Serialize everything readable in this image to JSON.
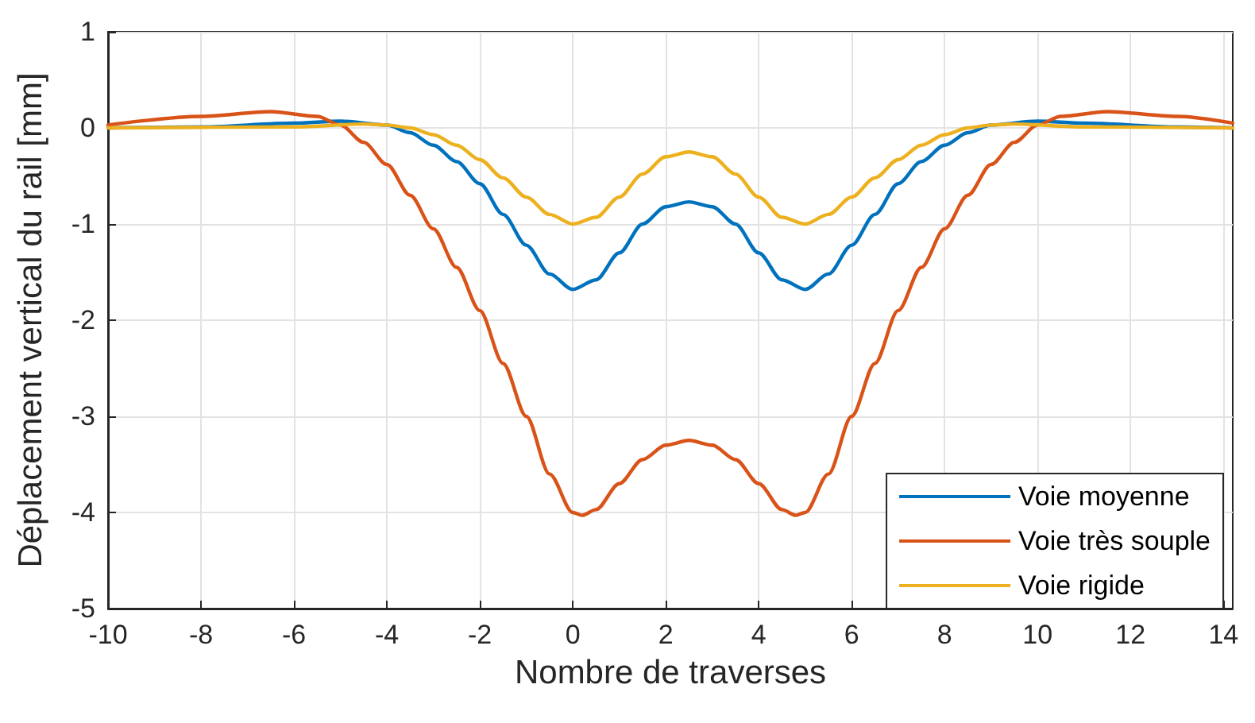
{
  "chart_data": {
    "type": "line",
    "xlabel": "Nombre de traverses",
    "ylabel": "Déplacement vertical du rail [mm]",
    "xlim": [
      -10,
      14.2
    ],
    "xticks": [
      -10,
      -8,
      -6,
      -4,
      -2,
      0,
      2,
      4,
      6,
      8,
      10,
      12,
      14
    ],
    "ylim": [
      -5,
      1
    ],
    "yticks": [
      -5,
      -4,
      -3,
      -2,
      -1,
      0,
      1
    ],
    "grid": true,
    "legend": "bottom right",
    "marker": "none",
    "line_style": "solid",
    "series": [
      {
        "name": "Voie moyenne",
        "color": "#0072bd",
        "x": [
          -10,
          -8,
          -6,
          -5,
          -4,
          -3.5,
          -3,
          -2.5,
          -2,
          -1.5,
          -1,
          -0.5,
          0,
          0.5,
          1,
          1.5,
          2,
          2.5,
          3,
          3.5,
          4,
          4.5,
          5,
          5.5,
          6,
          6.5,
          7,
          7.5,
          8,
          8.5,
          9,
          10,
          11,
          13,
          14.2
        ],
        "values": [
          0,
          0.01,
          0.05,
          0.07,
          0.03,
          -0.05,
          -0.18,
          -0.35,
          -0.58,
          -0.9,
          -1.22,
          -1.52,
          -1.68,
          -1.58,
          -1.3,
          -1.0,
          -0.82,
          -0.77,
          -0.82,
          -1.0,
          -1.3,
          -1.58,
          -1.68,
          -1.52,
          -1.22,
          -0.9,
          -0.58,
          -0.35,
          -0.18,
          -0.05,
          0.03,
          0.07,
          0.05,
          0.01,
          0
        ]
      },
      {
        "name": "Voie très souple",
        "color": "#d95319",
        "x": [
          -10,
          -8,
          -6.5,
          -5.5,
          -5,
          -4.5,
          -4,
          -3.5,
          -3,
          -2.5,
          -2,
          -1.5,
          -1,
          -0.5,
          0,
          0.2,
          0.5,
          1,
          1.5,
          2,
          2.5,
          3,
          3.5,
          4,
          4.5,
          4.8,
          5,
          5.5,
          6,
          6.5,
          7,
          7.5,
          8,
          8.5,
          9,
          9.5,
          10,
          10.5,
          11.5,
          13,
          14.2
        ],
        "values": [
          0.03,
          0.12,
          0.17,
          0.12,
          0.03,
          -0.15,
          -0.38,
          -0.7,
          -1.05,
          -1.45,
          -1.9,
          -2.45,
          -3.0,
          -3.6,
          -4.0,
          -4.03,
          -3.97,
          -3.7,
          -3.45,
          -3.3,
          -3.25,
          -3.3,
          -3.45,
          -3.7,
          -3.97,
          -4.03,
          -4.0,
          -3.6,
          -3.0,
          -2.45,
          -1.9,
          -1.45,
          -1.05,
          -0.7,
          -0.38,
          -0.15,
          0.03,
          0.12,
          0.17,
          0.12,
          0.05
        ]
      },
      {
        "name": "Voie rigide",
        "color": "#edb120",
        "x": [
          -10,
          -6,
          -4.5,
          -4,
          -3.5,
          -3,
          -2.5,
          -2,
          -1.5,
          -1,
          -0.5,
          0,
          0.5,
          1,
          1.5,
          2,
          2.5,
          3,
          3.5,
          4,
          4.5,
          5,
          5.5,
          6,
          6.5,
          7,
          7.5,
          8,
          8.5,
          9,
          9.5,
          11,
          14.2
        ],
        "values": [
          0,
          0.01,
          0.04,
          0.03,
          0,
          -0.07,
          -0.18,
          -0.33,
          -0.52,
          -0.72,
          -0.9,
          -1.0,
          -0.93,
          -0.72,
          -0.48,
          -0.3,
          -0.25,
          -0.3,
          -0.48,
          -0.72,
          -0.93,
          -1.0,
          -0.9,
          -0.72,
          -0.52,
          -0.33,
          -0.18,
          -0.07,
          0,
          0.03,
          0.04,
          0.01,
          0
        ]
      }
    ]
  }
}
